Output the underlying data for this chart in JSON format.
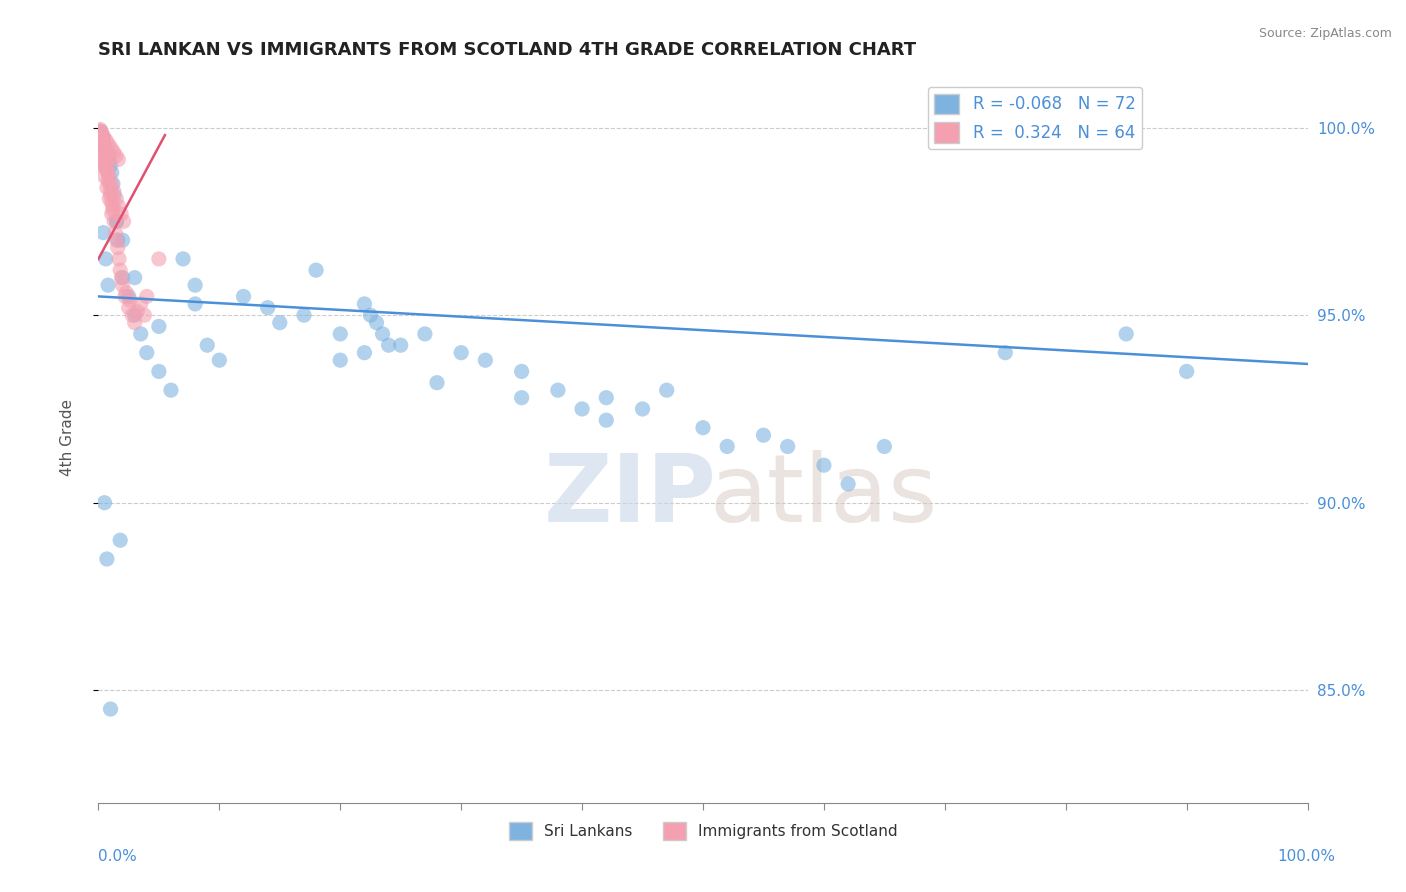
{
  "title": "SRI LANKAN VS IMMIGRANTS FROM SCOTLAND 4TH GRADE CORRELATION CHART",
  "source": "Source: ZipAtlas.com",
  "ylabel": "4th Grade",
  "right_yticks": [
    85.0,
    90.0,
    95.0,
    100.0
  ],
  "right_ytick_labels": [
    "85.0%",
    "90.0%",
    "95.0%",
    "100.0%"
  ],
  "xmin": 0.0,
  "xmax": 100.0,
  "ymin": 82.0,
  "ymax": 101.5,
  "blue_R": -0.068,
  "blue_N": 72,
  "pink_R": 0.324,
  "pink_N": 64,
  "blue_color": "#7eb3e0",
  "pink_color": "#f4a0b0",
  "blue_line_color": "#4a90d9",
  "pink_line_color": "#e05070",
  "legend_label_blue": "Sri Lankans",
  "legend_label_pink": "Immigrants from Scotland",
  "blue_scatter_x": [
    0.3,
    0.5,
    0.8,
    1.0,
    1.2,
    1.5,
    0.2,
    0.4,
    0.6,
    0.9,
    1.1,
    1.3,
    1.6,
    2.0,
    2.5,
    3.0,
    3.5,
    4.0,
    5.0,
    6.0,
    7.0,
    8.0,
    9.0,
    10.0,
    12.0,
    14.0,
    15.0,
    17.0,
    20.0,
    22.0,
    25.0,
    27.0,
    30.0,
    32.0,
    35.0,
    38.0,
    40.0,
    42.0,
    45.0,
    47.0,
    50.0,
    52.0,
    55.0,
    57.0,
    60.0,
    62.0,
    35.0,
    42.0,
    28.0,
    18.0,
    8.0,
    5.0,
    3.0,
    2.0,
    1.5,
    0.8,
    0.6,
    0.4,
    65.0,
    75.0,
    85.0,
    90.0,
    22.0,
    22.5,
    23.0,
    23.5,
    24.0,
    20.0,
    0.7,
    1.8,
    1.0,
    0.5
  ],
  "blue_scatter_y": [
    99.8,
    99.5,
    99.3,
    99.0,
    98.5,
    97.5,
    99.9,
    99.7,
    99.4,
    99.1,
    98.8,
    98.2,
    97.0,
    96.0,
    95.5,
    95.0,
    94.5,
    94.0,
    93.5,
    93.0,
    96.5,
    95.8,
    94.2,
    93.8,
    95.5,
    95.2,
    94.8,
    95.0,
    94.5,
    94.0,
    94.2,
    94.5,
    94.0,
    93.8,
    93.5,
    93.0,
    92.5,
    92.8,
    92.5,
    93.0,
    92.0,
    91.5,
    91.8,
    91.5,
    91.0,
    90.5,
    92.8,
    92.2,
    93.2,
    96.2,
    95.3,
    94.7,
    96.0,
    97.0,
    97.5,
    95.8,
    96.5,
    97.2,
    91.5,
    94.0,
    94.5,
    93.5,
    95.3,
    95.0,
    94.8,
    94.5,
    94.2,
    93.8,
    88.5,
    89.0,
    84.5,
    90.0
  ],
  "pink_scatter_x": [
    0.2,
    0.3,
    0.4,
    0.5,
    0.6,
    0.7,
    0.8,
    0.9,
    1.0,
    1.1,
    1.2,
    1.3,
    1.4,
    1.5,
    1.6,
    1.7,
    1.8,
    1.9,
    2.0,
    2.2,
    2.5,
    2.8,
    3.0,
    3.5,
    4.0,
    0.35,
    0.55,
    0.75,
    0.25,
    0.45,
    0.65,
    0.85,
    1.05,
    1.25,
    1.45,
    1.65,
    0.3,
    0.5,
    0.7,
    0.9,
    1.1,
    0.4,
    0.6,
    0.8,
    1.0,
    1.2,
    5.0,
    0.15,
    2.3,
    2.6,
    0.28,
    0.48,
    0.68,
    0.88,
    1.08,
    1.28,
    1.48,
    1.68,
    1.88,
    2.08,
    3.2,
    3.8,
    0.38,
    0.58
  ],
  "pink_scatter_y": [
    99.9,
    99.8,
    99.7,
    99.5,
    99.3,
    99.0,
    98.8,
    98.5,
    98.2,
    98.0,
    97.8,
    97.5,
    97.2,
    97.0,
    96.8,
    96.5,
    96.2,
    96.0,
    95.8,
    95.5,
    95.2,
    95.0,
    94.8,
    95.3,
    95.5,
    99.6,
    99.4,
    99.2,
    99.85,
    99.75,
    99.65,
    99.55,
    99.45,
    99.35,
    99.25,
    99.15,
    99.0,
    98.7,
    98.4,
    98.1,
    97.7,
    99.1,
    98.9,
    98.6,
    98.3,
    97.9,
    96.5,
    99.95,
    95.6,
    95.4,
    99.3,
    99.1,
    98.9,
    98.7,
    98.5,
    98.3,
    98.1,
    97.9,
    97.7,
    97.5,
    95.1,
    95.0,
    99.2,
    99.0
  ],
  "blue_trend_x": [
    0.0,
    100.0
  ],
  "blue_trend_y": [
    95.5,
    93.7
  ],
  "pink_trend_x": [
    0.0,
    5.5
  ],
  "pink_trend_y": [
    96.5,
    99.8
  ]
}
